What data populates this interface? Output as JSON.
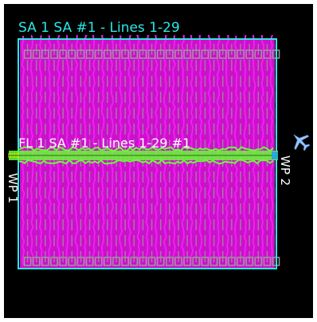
{
  "area": {
    "title": "SA 1 SA #1 - Lines 1-29"
  },
  "flight_line": {
    "title": "FL 1 SA #1 - Lines 1-29 #1"
  },
  "waypoints": {
    "start": "WP 1",
    "end": "WP 2"
  },
  "survey": {
    "line_count": 29
  },
  "colors": {
    "background": "#000000",
    "area_border": "#2ee6e6",
    "swath_fill": "#cc10cc",
    "swath_stroke": "#ee22ee",
    "line_marks": "#9a9a9a",
    "flight_path": "#66ff33",
    "flight_path_accent": "#ffdd00",
    "aircraft": "#99c8ff"
  },
  "icons": {
    "aircraft": "airplane-icon"
  }
}
